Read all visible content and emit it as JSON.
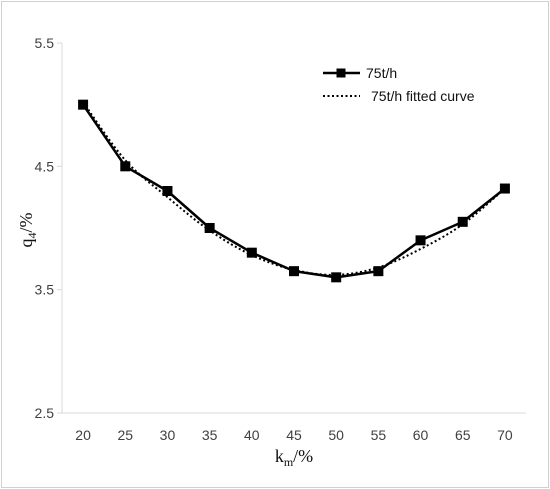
{
  "chart_data": {
    "type": "line",
    "x": [
      20,
      25,
      30,
      35,
      40,
      45,
      50,
      55,
      60,
      65,
      70
    ],
    "series": [
      {
        "name": "75t/h",
        "values": [
          5.0,
          4.5,
          4.3,
          4.0,
          3.8,
          3.65,
          3.6,
          3.65,
          3.9,
          4.05,
          4.32
        ],
        "style": "solid",
        "marker": "square",
        "color": "#000000"
      },
      {
        "name": "75t/h fitted curve",
        "values": [
          5.02,
          4.55,
          4.25,
          3.98,
          3.78,
          3.66,
          3.62,
          3.68,
          3.83,
          4.03,
          4.32
        ],
        "style": "dotted",
        "color": "#000000"
      }
    ],
    "xlabel": {
      "main": "k",
      "sub": "m",
      "unit": "/%"
    },
    "ylabel": {
      "main": "q",
      "sub": "4",
      "unit": "/%"
    },
    "xticks": [
      "20",
      "25",
      "30",
      "35",
      "40",
      "45",
      "50",
      "55",
      "60",
      "65",
      "70"
    ],
    "yticks": [
      "5.5",
      "4.5",
      "3.5",
      "2.5"
    ],
    "ylim": [
      2.5,
      5.5
    ],
    "grid": false,
    "legend_position": "top-right"
  }
}
